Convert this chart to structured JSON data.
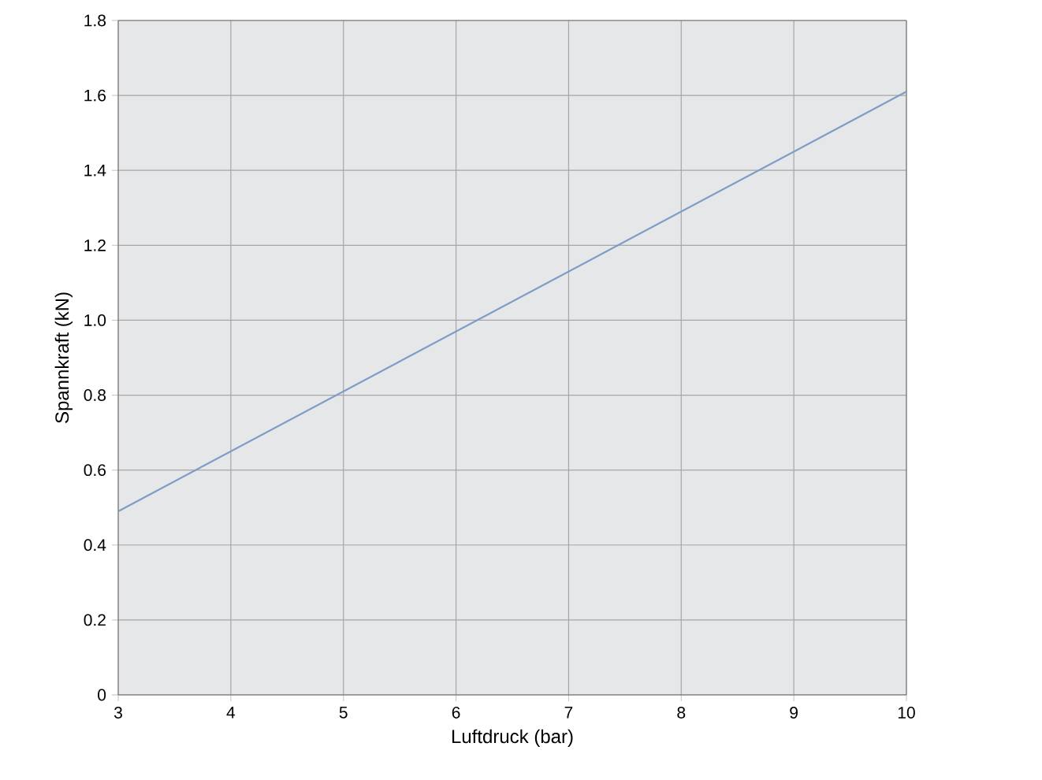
{
  "chart_data": {
    "type": "line",
    "xlabel": "Luftdruck (bar)",
    "ylabel": "Spannkraft (kN)",
    "x": [
      3,
      10
    ],
    "series": [
      {
        "color": "#7f9cc6",
        "values": [
          0.49,
          1.61
        ]
      }
    ],
    "xlim": [
      3,
      10
    ],
    "ylim": [
      0,
      1.8
    ],
    "xticks": [
      3,
      4,
      5,
      6,
      7,
      8,
      9,
      10
    ],
    "yticks": [
      0,
      0.2,
      0.4,
      0.6,
      0.8,
      {
        "value": 1,
        "label": "1.0"
      },
      1.2,
      1.4,
      1.6,
      1.8
    ],
    "grid": true
  }
}
